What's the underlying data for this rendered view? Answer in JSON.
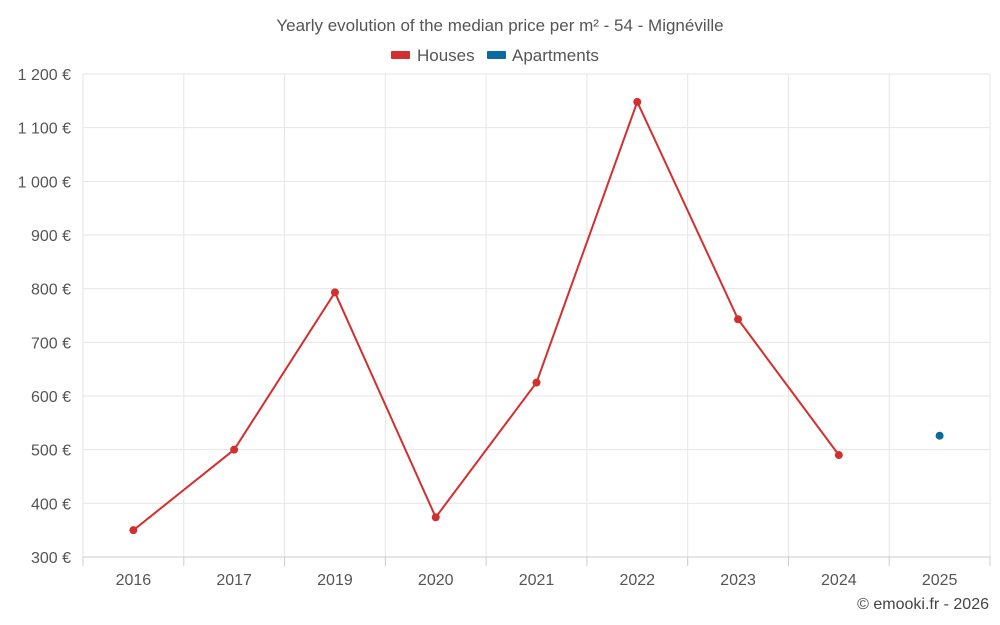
{
  "chart_data": {
    "type": "line",
    "title": "Yearly evolution of the median price per m² - 54 - Mignéville",
    "categories": [
      "2016",
      "2017",
      "2019",
      "2020",
      "2021",
      "2022",
      "2023",
      "2024",
      "2025"
    ],
    "ylim": [
      300,
      1200
    ],
    "yticks": [
      300,
      400,
      500,
      600,
      700,
      800,
      900,
      1000,
      1100,
      1200
    ],
    "ytick_labels": [
      "300 €",
      "400 €",
      "500 €",
      "600 €",
      "700 €",
      "800 €",
      "900 €",
      "1 000 €",
      "1 100 €",
      "1 200 €"
    ],
    "grid": true,
    "legend_position": "top-center",
    "series": [
      {
        "name": "Houses",
        "color": "#d32f2f",
        "values": [
          350,
          500,
          793,
          374,
          625,
          1148,
          743,
          490,
          null
        ]
      },
      {
        "name": "Apartments",
        "color": "#0a6aa1",
        "values": [
          null,
          null,
          null,
          null,
          null,
          null,
          null,
          null,
          526
        ]
      }
    ]
  },
  "credit": "© emooki.fr - 2026"
}
